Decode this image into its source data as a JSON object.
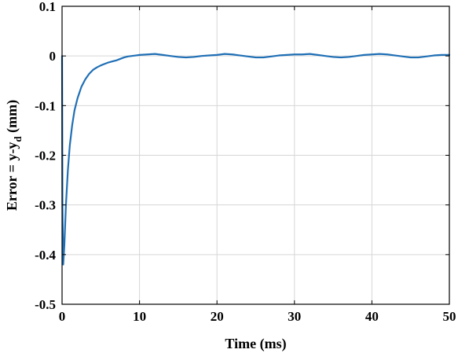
{
  "chart_data": {
    "type": "line",
    "title": "",
    "xlabel": "Time (ms)",
    "ylabel_main": "Error = y-y",
    "ylabel_sub": "d",
    "ylabel_unit": " (mm)",
    "xlim": [
      0,
      50
    ],
    "ylim": [
      -0.5,
      0.1
    ],
    "xticks": [
      0,
      10,
      20,
      30,
      40,
      50
    ],
    "yticks": [
      0.1,
      0,
      -0.1,
      -0.2,
      -0.3,
      -0.4,
      -0.5
    ],
    "xtick_labels": [
      "0",
      "10",
      "20",
      "30",
      "40",
      "50"
    ],
    "ytick_labels": [
      "0.1",
      "0",
      "-0.1",
      "-0.2",
      "-0.3",
      "-0.4",
      "-0.5"
    ],
    "grid": true,
    "series": [
      {
        "color": "#1f6fb5",
        "x": [
          0,
          0.05,
          0.15,
          0.3,
          0.5,
          0.75,
          1,
          1.3,
          1.6,
          2,
          2.5,
          3,
          3.5,
          4,
          4.5,
          5,
          5.5,
          6,
          6.5,
          7,
          7.5,
          8,
          8.5,
          9,
          9.5,
          10,
          11,
          12,
          13,
          14,
          15,
          16,
          17,
          18,
          19,
          20,
          21,
          22,
          23,
          24,
          25,
          26,
          27,
          28,
          29,
          30,
          31,
          32,
          33,
          34,
          35,
          36,
          37,
          38,
          39,
          40,
          41,
          42,
          43,
          44,
          45,
          46,
          47,
          48,
          49,
          50
        ],
        "y": [
          0,
          -0.3,
          -0.42,
          -0.38,
          -0.3,
          -0.23,
          -0.18,
          -0.14,
          -0.11,
          -0.085,
          -0.062,
          -0.047,
          -0.036,
          -0.028,
          -0.023,
          -0.019,
          -0.016,
          -0.013,
          -0.011,
          -0.009,
          -0.006,
          -0.003,
          -0.001,
          0.0,
          0.001,
          0.002,
          0.003,
          0.004,
          0.002,
          0.0,
          -0.002,
          -0.003,
          -0.002,
          0.0,
          0.001,
          0.002,
          0.004,
          0.003,
          0.001,
          -0.001,
          -0.003,
          -0.003,
          -0.001,
          0.001,
          0.002,
          0.003,
          0.003,
          0.004,
          0.002,
          0.0,
          -0.002,
          -0.003,
          -0.002,
          0.0,
          0.002,
          0.003,
          0.004,
          0.003,
          0.001,
          -0.001,
          -0.003,
          -0.003,
          -0.001,
          0.001,
          0.002,
          0.002
        ]
      }
    ]
  }
}
